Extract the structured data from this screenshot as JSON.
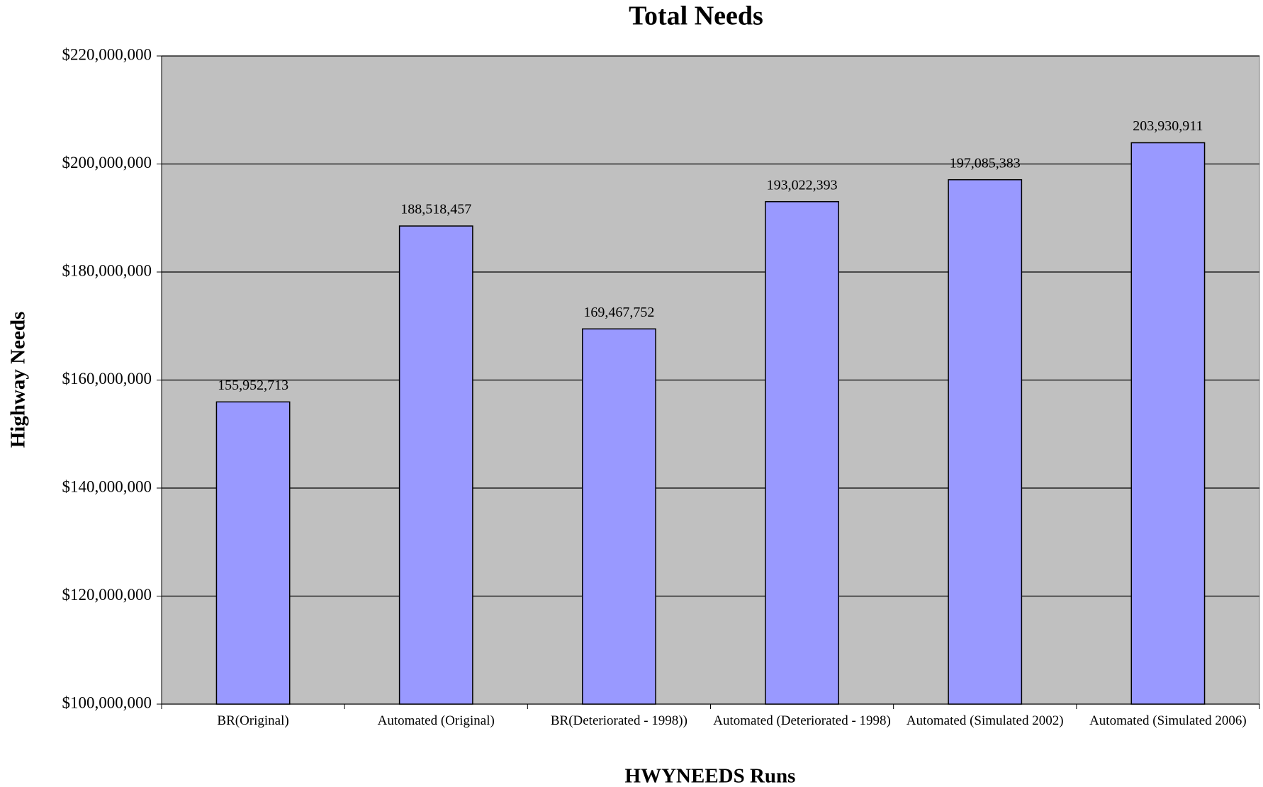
{
  "chart_data": {
    "type": "bar",
    "title": "Total Needs",
    "x_label": "HWYNEEDS Runs",
    "y_label": "Highway Needs",
    "categories": [
      "BR(Original)",
      "Automated (Original)",
      "BR(Deteriorated - 1998))",
      "Automated (Deteriorated - 1998)",
      "Automated (Simulated 2002)",
      "Automated (Simulated 2006)"
    ],
    "values": [
      155952713,
      188518457,
      169467752,
      193022393,
      197085383,
      203930911
    ],
    "value_labels": [
      "155,952,713",
      "188,518,457",
      "169,467,752",
      "193,022,393",
      "197,085,383",
      "203,930,911"
    ],
    "color": "#9999ff",
    "ylim": [
      100000000,
      220000000
    ],
    "yticks": [
      {
        "value": 100000000,
        "label": "$100,000,000"
      },
      {
        "value": 120000000,
        "label": "$120,000,000"
      },
      {
        "value": 140000000,
        "label": "$140,000,000"
      },
      {
        "value": 160000000,
        "label": "$160,000,000"
      },
      {
        "value": 180000000,
        "label": "$180,000,000"
      },
      {
        "value": 200000000,
        "label": "$200,000,000"
      },
      {
        "value": 220000000,
        "label": "$220,000,000"
      }
    ],
    "grid": true
  }
}
